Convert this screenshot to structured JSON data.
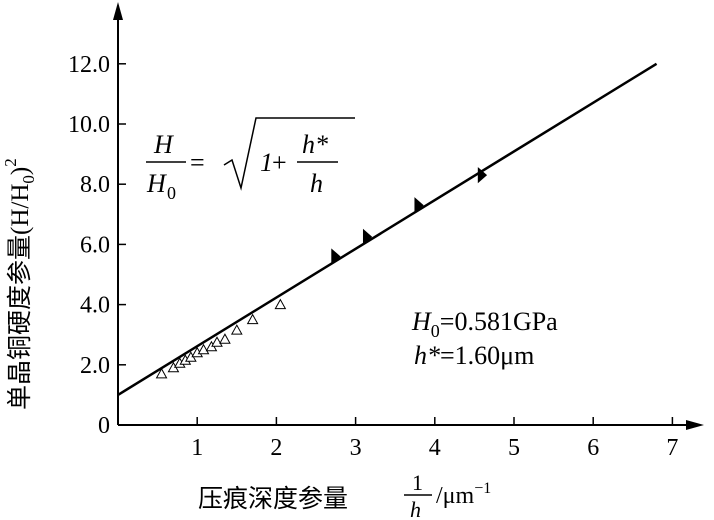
{
  "chart_data": {
    "type": "scatter",
    "xlabel_prefix": "压痕深度参量",
    "xlabel_frac_num": "1",
    "xlabel_frac_den": "h",
    "xlabel_unit": "/μm",
    "xlabel_unit_exp": "−1",
    "ylabel_prefix": "单晶铜硬度参量",
    "ylabel_expr": "(H/H",
    "ylabel_sub": "0",
    "ylabel_close": ")",
    "ylabel_exp": "2",
    "xlim": [
      0,
      7.3
    ],
    "ylim": [
      0,
      13
    ],
    "x_ticks": [
      {
        "value": 1,
        "label": "1"
      },
      {
        "value": 2,
        "label": "2"
      },
      {
        "value": 3,
        "label": "3"
      },
      {
        "value": 4,
        "label": "4"
      },
      {
        "value": 5,
        "label": "5"
      },
      {
        "value": 6,
        "label": "6"
      },
      {
        "value": 7,
        "label": "7"
      }
    ],
    "y_ticks": [
      {
        "value": 0,
        "label": "0"
      },
      {
        "value": 2,
        "label": "2.0"
      },
      {
        "value": 4,
        "label": "4.0"
      },
      {
        "value": 6,
        "label": "6.0"
      },
      {
        "value": 8,
        "label": "8.0"
      },
      {
        "value": 10,
        "label": "10.0"
      },
      {
        "value": 12,
        "label": "12.0"
      }
    ],
    "fit_line": {
      "x": [
        0,
        6.8
      ],
      "y": [
        1.0,
        12.0
      ]
    },
    "series": [
      {
        "marker": "open-triangle",
        "points": [
          {
            "x": 0.55,
            "y": 1.7
          },
          {
            "x": 0.7,
            "y": 1.9
          },
          {
            "x": 0.78,
            "y": 2.05
          },
          {
            "x": 0.85,
            "y": 2.15
          },
          {
            "x": 0.92,
            "y": 2.25
          },
          {
            "x": 1.0,
            "y": 2.4
          },
          {
            "x": 1.08,
            "y": 2.5
          },
          {
            "x": 1.18,
            "y": 2.6
          },
          {
            "x": 1.25,
            "y": 2.75
          },
          {
            "x": 1.35,
            "y": 2.85
          },
          {
            "x": 1.5,
            "y": 3.15
          },
          {
            "x": 1.7,
            "y": 3.5
          },
          {
            "x": 2.05,
            "y": 4.0
          }
        ]
      },
      {
        "marker": "filled-triangle",
        "points": [
          {
            "x": 2.75,
            "y": 5.6
          },
          {
            "x": 3.15,
            "y": 6.25
          },
          {
            "x": 3.8,
            "y": 7.3
          },
          {
            "x": 4.6,
            "y": 8.3
          }
        ]
      }
    ],
    "formula": {
      "lhs_num": "H",
      "lhs_den": "H",
      "lhs_den_sub": "0",
      "equals": "=",
      "one": "1",
      "plus": "+",
      "rhs_num": "h*",
      "rhs_den": "h"
    },
    "annotations": {
      "h0_symbol": "H",
      "h0_sub": "0",
      "h0_value": "=0.581GPa",
      "hstar_symbol": "h*",
      "hstar_value": "=1.60μm"
    }
  }
}
